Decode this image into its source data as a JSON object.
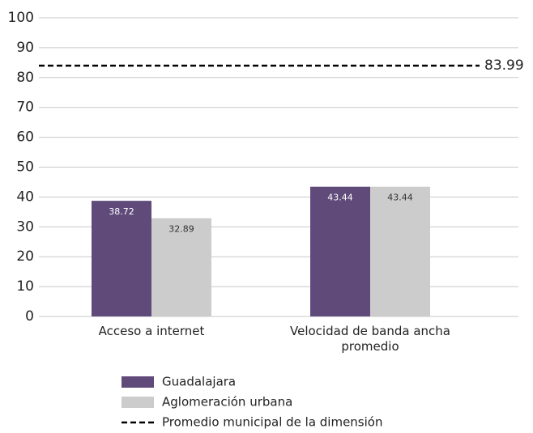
{
  "chart_data": {
    "type": "bar",
    "categories": [
      "Acceso a internet",
      "Velocidad de banda ancha promedio"
    ],
    "series": [
      {
        "name": "Guadalajara",
        "color": "#5f4a7a",
        "values": [
          38.72,
          43.44
        ]
      },
      {
        "name": "Aglomeración urbana",
        "color": "#cccccc",
        "values": [
          32.89,
          43.44
        ]
      }
    ],
    "reference_line": {
      "name": "Promedio municipal de la dimensión",
      "value": 83.99
    },
    "ylim": [
      0,
      100
    ],
    "yticks": [
      0,
      10,
      20,
      30,
      40,
      50,
      60,
      70,
      80,
      90,
      100
    ],
    "grid": true
  }
}
